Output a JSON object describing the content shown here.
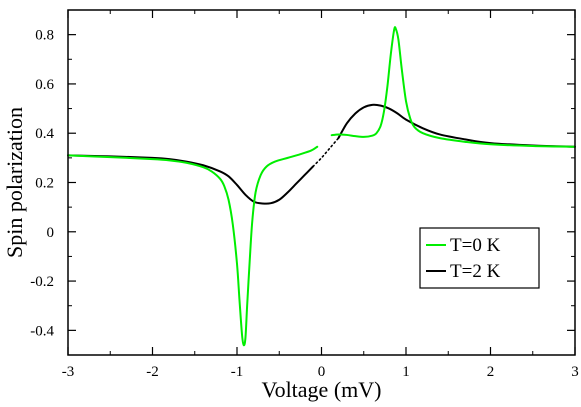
{
  "chart_data": {
    "type": "line",
    "title": "",
    "xlabel": "Voltage (mV)",
    "ylabel": "Spin polarization",
    "xlim": [
      -3,
      3
    ],
    "ylim": [
      -0.5,
      0.9
    ],
    "grid": false,
    "legend_position": "lower-right",
    "x_ticks": [
      -3,
      -2,
      -1,
      0,
      1,
      2,
      3
    ],
    "x_tick_labels": [
      "-3",
      "-2",
      "-1",
      "0",
      "1",
      "2",
      "3"
    ],
    "y_ticks": [
      -0.4,
      -0.2,
      0,
      0.2,
      0.4,
      0.6,
      0.8
    ],
    "y_tick_labels": [
      "-0.4",
      "-0.2",
      "0",
      "0.2",
      "0.4",
      "0.6",
      "0.8"
    ],
    "series": [
      {
        "name": "T=0 K",
        "color": "#00ee00",
        "points": [
          [
            -3.0,
            0.31
          ],
          [
            -2.5,
            0.303
          ],
          [
            -2.0,
            0.295
          ],
          [
            -1.8,
            0.29
          ],
          [
            -1.6,
            0.28
          ],
          [
            -1.4,
            0.262
          ],
          [
            -1.3,
            0.245
          ],
          [
            -1.2,
            0.215
          ],
          [
            -1.15,
            0.185
          ],
          [
            -1.1,
            0.13
          ],
          [
            -1.05,
            0.03
          ],
          [
            -1.0,
            -0.13
          ],
          [
            -0.97,
            -0.28
          ],
          [
            -0.94,
            -0.42
          ],
          [
            -0.92,
            -0.46
          ],
          [
            -0.9,
            -0.43
          ],
          [
            -0.88,
            -0.3
          ],
          [
            -0.85,
            -0.12
          ],
          [
            -0.82,
            0.04
          ],
          [
            -0.78,
            0.16
          ],
          [
            -0.72,
            0.23
          ],
          [
            -0.65,
            0.265
          ],
          [
            -0.55,
            0.285
          ],
          [
            -0.4,
            0.3
          ],
          [
            -0.25,
            0.315
          ],
          [
            -0.12,
            0.33
          ],
          [
            -0.05,
            0.345
          ]
        ],
        "points_2": [
          [
            0.12,
            0.392
          ],
          [
            0.2,
            0.395
          ],
          [
            0.3,
            0.393
          ],
          [
            0.4,
            0.388
          ],
          [
            0.5,
            0.385
          ],
          [
            0.6,
            0.39
          ],
          [
            0.65,
            0.4
          ],
          [
            0.7,
            0.43
          ],
          [
            0.74,
            0.49
          ],
          [
            0.78,
            0.59
          ],
          [
            0.82,
            0.72
          ],
          [
            0.86,
            0.82
          ],
          [
            0.88,
            0.823
          ],
          [
            0.91,
            0.78
          ],
          [
            0.95,
            0.66
          ],
          [
            1.0,
            0.53
          ],
          [
            1.05,
            0.46
          ],
          [
            1.1,
            0.425
          ],
          [
            1.2,
            0.4
          ],
          [
            1.4,
            0.38
          ],
          [
            1.7,
            0.365
          ],
          [
            2.0,
            0.355
          ],
          [
            2.5,
            0.348
          ],
          [
            3.0,
            0.345
          ]
        ]
      },
      {
        "name": "T=2 K",
        "color": "#000000",
        "points": [
          [
            -3.0,
            0.31
          ],
          [
            -2.5,
            0.306
          ],
          [
            -2.0,
            0.3
          ],
          [
            -1.8,
            0.295
          ],
          [
            -1.6,
            0.285
          ],
          [
            -1.4,
            0.27
          ],
          [
            -1.2,
            0.245
          ],
          [
            -1.1,
            0.225
          ],
          [
            -1.0,
            0.19
          ],
          [
            -0.9,
            0.15
          ],
          [
            -0.8,
            0.122
          ],
          [
            -0.7,
            0.115
          ],
          [
            -0.6,
            0.116
          ],
          [
            -0.5,
            0.13
          ],
          [
            -0.4,
            0.16
          ],
          [
            -0.3,
            0.195
          ],
          [
            -0.2,
            0.23
          ],
          [
            -0.1,
            0.265
          ]
        ],
        "dotted": [
          [
            -0.1,
            0.265
          ],
          [
            0.0,
            0.3
          ],
          [
            0.1,
            0.34
          ],
          [
            0.2,
            0.38
          ]
        ],
        "points_2": [
          [
            0.2,
            0.38
          ],
          [
            0.3,
            0.44
          ],
          [
            0.4,
            0.48
          ],
          [
            0.5,
            0.505
          ],
          [
            0.6,
            0.515
          ],
          [
            0.7,
            0.512
          ],
          [
            0.8,
            0.5
          ],
          [
            0.9,
            0.48
          ],
          [
            1.0,
            0.455
          ],
          [
            1.2,
            0.42
          ],
          [
            1.4,
            0.395
          ],
          [
            1.7,
            0.375
          ],
          [
            2.0,
            0.36
          ],
          [
            2.5,
            0.35
          ],
          [
            3.0,
            0.345
          ]
        ]
      }
    ]
  }
}
